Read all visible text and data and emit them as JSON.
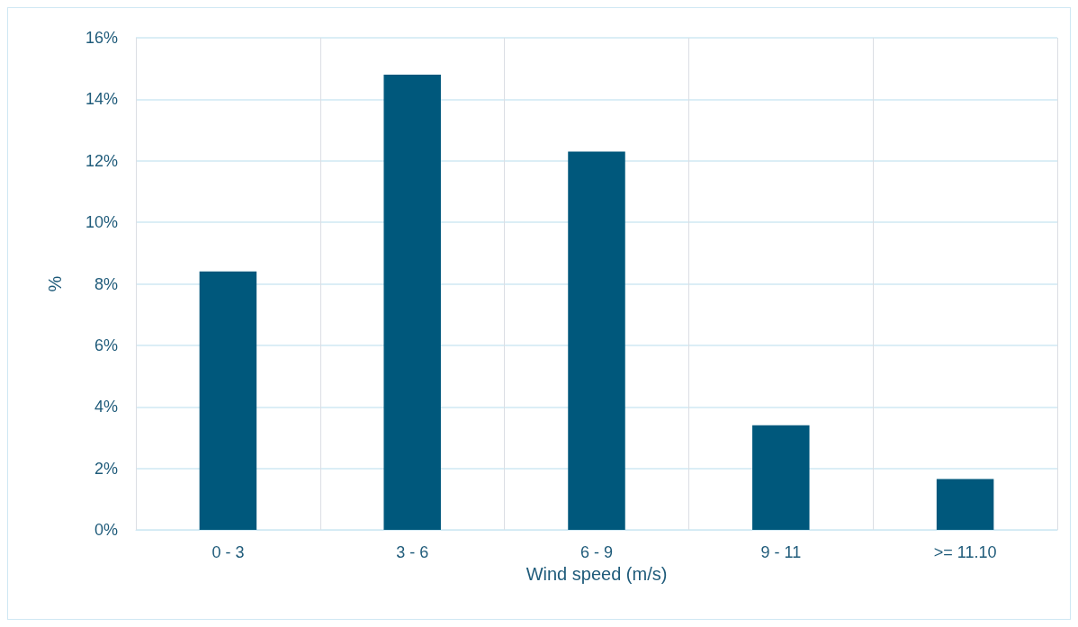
{
  "chart_data": {
    "type": "bar",
    "xlabel": "Wind speed (m/s)",
    "ylabel": "%",
    "categories": [
      "0 - 3",
      "3 - 6",
      "6 - 9",
      "9 - 11",
      ">= 11.10"
    ],
    "values": [
      8.4,
      14.8,
      12.3,
      3.4,
      1.65
    ],
    "color": "#00587c",
    "ylim": [
      0,
      16
    ],
    "yticks": [
      {
        "value": 0,
        "label": "0%"
      },
      {
        "value": 2,
        "label": "2%"
      },
      {
        "value": 4,
        "label": "4%"
      },
      {
        "value": 6,
        "label": "6%"
      },
      {
        "value": 8,
        "label": "8%"
      },
      {
        "value": 10,
        "label": "10%"
      },
      {
        "value": 12,
        "label": "12%"
      },
      {
        "value": 14,
        "label": "14%"
      },
      {
        "value": 16,
        "label": "16%"
      }
    ],
    "grid": true
  }
}
